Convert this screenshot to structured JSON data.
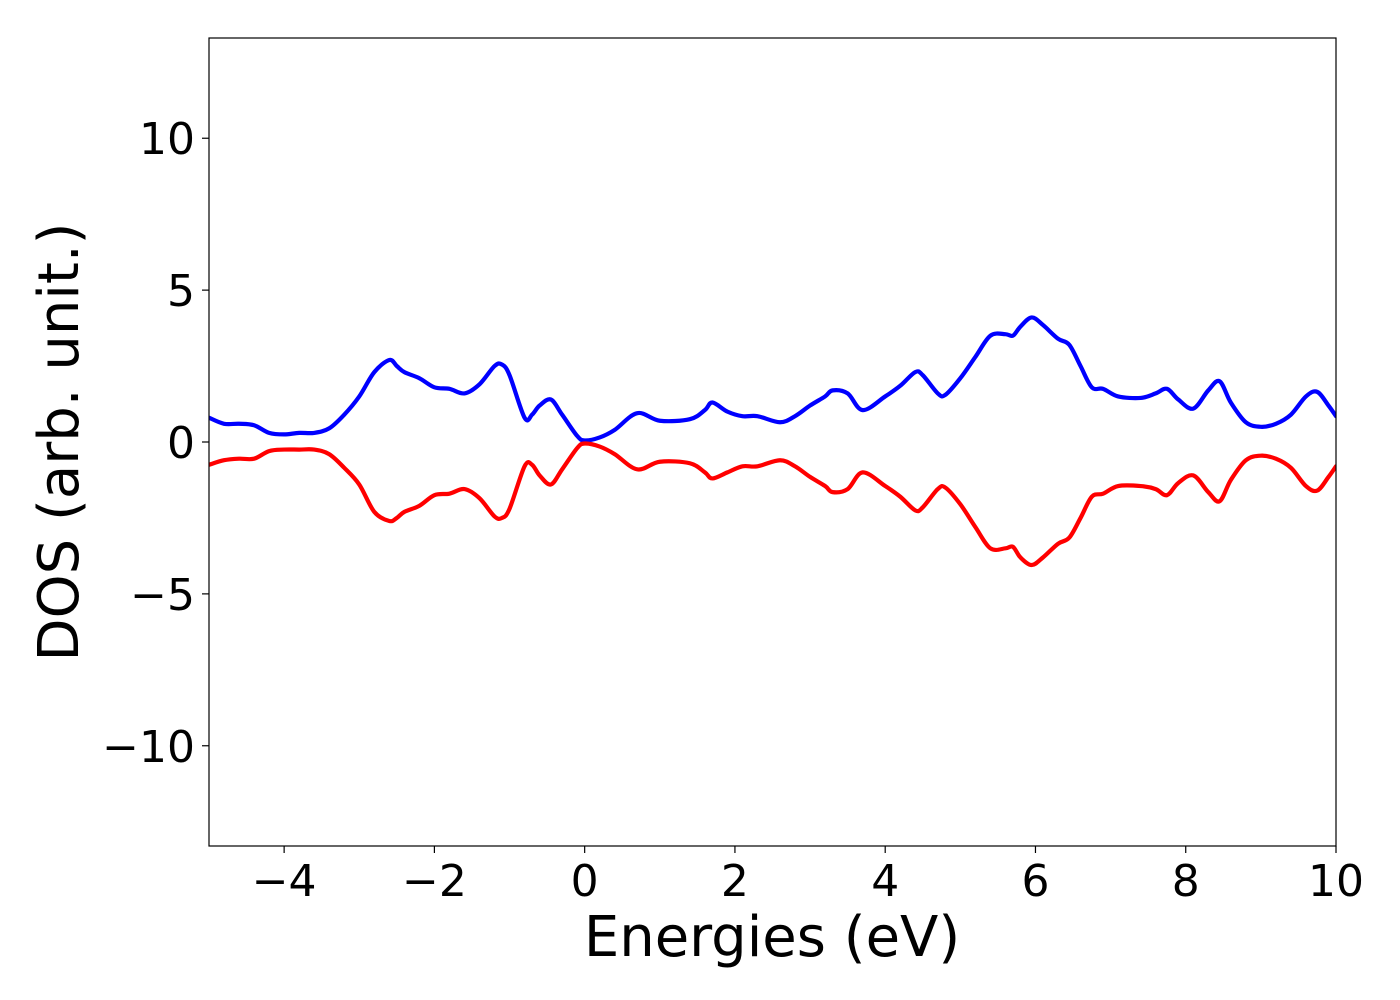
{
  "chart_data": {
    "type": "line",
    "title": "",
    "xlabel": "Energies (eV)",
    "ylabel": "DOS (arb. unit.)",
    "xlim": [
      -5,
      10
    ],
    "ylim": [
      -13.3,
      13.3
    ],
    "grid": false,
    "legend": "none",
    "x_ticks": [
      -4,
      -2,
      0,
      2,
      4,
      6,
      8,
      10
    ],
    "x_tick_labels": [
      "−4",
      "−2",
      "0",
      "2",
      "4",
      "6",
      "8",
      "10"
    ],
    "y_ticks": [
      -10,
      -5,
      0,
      5,
      10
    ],
    "y_tick_labels": [
      "−10",
      "−5",
      "0",
      "5",
      "10"
    ],
    "x": [
      -5.0,
      -4.8,
      -4.6,
      -4.4,
      -4.2,
      -4.0,
      -3.8,
      -3.6,
      -3.4,
      -3.2,
      -3.0,
      -2.8,
      -2.6,
      -2.5,
      -2.4,
      -2.2,
      -2.0,
      -1.8,
      -1.6,
      -1.4,
      -1.2,
      -1.1,
      -1.0,
      -0.8,
      -0.7,
      -0.6,
      -0.45,
      -0.3,
      -0.1,
      0.0,
      0.2,
      0.4,
      0.7,
      1.0,
      1.4,
      1.6,
      1.7,
      1.9,
      2.1,
      2.3,
      2.6,
      2.8,
      3.0,
      3.2,
      3.3,
      3.5,
      3.7,
      4.0,
      4.2,
      4.4,
      4.5,
      4.7,
      4.8,
      5.0,
      5.2,
      5.4,
      5.6,
      5.7,
      5.8,
      5.95,
      6.1,
      6.3,
      6.45,
      6.6,
      6.75,
      6.9,
      7.1,
      7.4,
      7.6,
      7.75,
      7.9,
      8.1,
      8.3,
      8.45,
      8.6,
      8.8,
      9.0,
      9.2,
      9.4,
      9.6,
      9.75,
      9.9,
      10.0
    ],
    "series": [
      {
        "color": "#0000ff",
        "values": [
          0.8,
          0.6,
          0.6,
          0.55,
          0.3,
          0.25,
          0.3,
          0.3,
          0.45,
          0.9,
          1.5,
          2.3,
          2.7,
          2.5,
          2.3,
          2.1,
          1.8,
          1.75,
          1.6,
          1.9,
          2.5,
          2.55,
          2.2,
          0.8,
          0.9,
          1.2,
          1.4,
          0.9,
          0.2,
          0.05,
          0.15,
          0.4,
          0.95,
          0.7,
          0.75,
          1.05,
          1.3,
          1.0,
          0.85,
          0.85,
          0.65,
          0.85,
          1.2,
          1.5,
          1.7,
          1.6,
          1.05,
          1.5,
          1.85,
          2.3,
          2.2,
          1.6,
          1.55,
          2.1,
          2.8,
          3.5,
          3.55,
          3.5,
          3.8,
          4.1,
          3.85,
          3.4,
          3.2,
          2.5,
          1.8,
          1.75,
          1.5,
          1.45,
          1.6,
          1.75,
          1.4,
          1.1,
          1.7,
          2.0,
          1.3,
          0.65,
          0.5,
          0.6,
          0.9,
          1.5,
          1.65,
          1.2,
          0.85
        ]
      },
      {
        "color": "#ff0000",
        "values": [
          -0.75,
          -0.6,
          -0.55,
          -0.55,
          -0.3,
          -0.25,
          -0.25,
          -0.25,
          -0.4,
          -0.85,
          -1.4,
          -2.3,
          -2.6,
          -2.5,
          -2.3,
          -2.1,
          -1.75,
          -1.7,
          -1.55,
          -1.85,
          -2.45,
          -2.5,
          -2.2,
          -0.8,
          -0.75,
          -1.1,
          -1.4,
          -0.9,
          -0.2,
          -0.05,
          -0.15,
          -0.4,
          -0.9,
          -0.65,
          -0.7,
          -1.0,
          -1.2,
          -1.0,
          -0.8,
          -0.8,
          -0.6,
          -0.8,
          -1.15,
          -1.45,
          -1.65,
          -1.55,
          -1.0,
          -1.45,
          -1.8,
          -2.25,
          -2.15,
          -1.55,
          -1.5,
          -2.05,
          -2.8,
          -3.5,
          -3.5,
          -3.45,
          -3.8,
          -4.05,
          -3.8,
          -3.35,
          -3.15,
          -2.5,
          -1.8,
          -1.7,
          -1.45,
          -1.45,
          -1.55,
          -1.75,
          -1.35,
          -1.1,
          -1.65,
          -1.95,
          -1.25,
          -0.6,
          -0.45,
          -0.55,
          -0.85,
          -1.45,
          -1.6,
          -1.15,
          -0.8
        ]
      }
    ]
  }
}
